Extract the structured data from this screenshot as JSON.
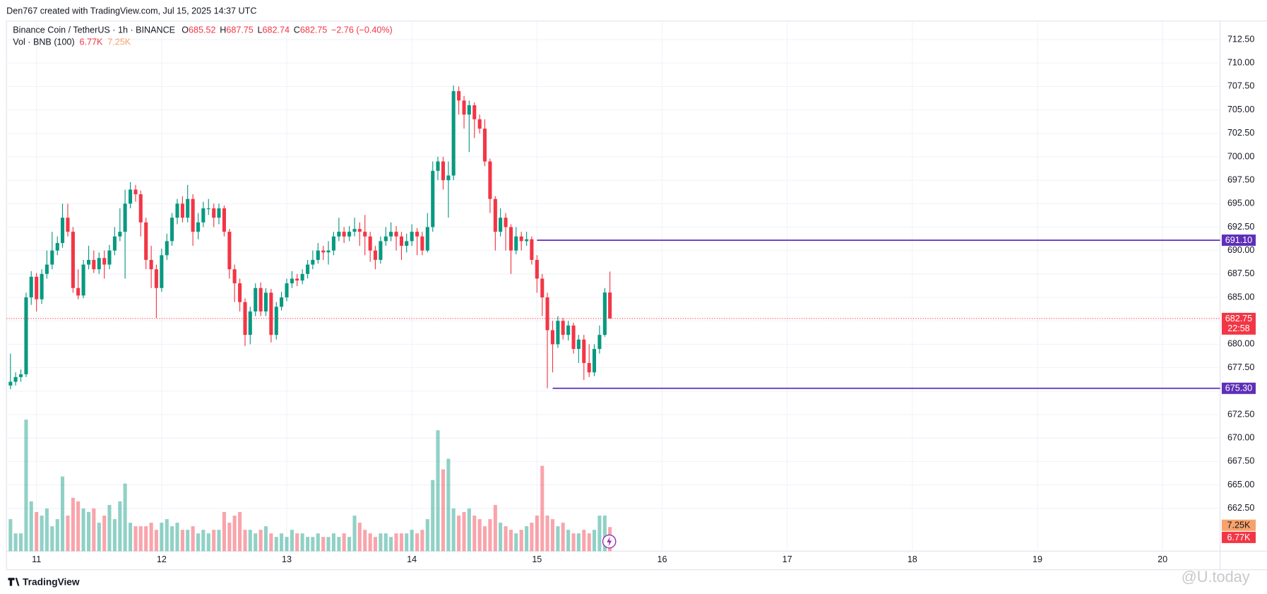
{
  "header": {
    "credit": "Den767 created with TradingView.com, Jul 15, 2025 14:37 UTC",
    "footer_brand": "TradingView",
    "watermark": "@U.today"
  },
  "legend": {
    "symbol": "Binance Coin / TetherUS · 1h · BINANCE",
    "ohlc": [
      {
        "label": "O",
        "value": 685.52
      },
      {
        "label": "H",
        "value": 687.75
      },
      {
        "label": "L",
        "value": 682.74
      },
      {
        "label": "C",
        "value": 682.75
      }
    ],
    "change": "−2.76 (−0.40%)",
    "volume_title": "Vol · BNB (100)",
    "volume_last": "6.77K",
    "volume_ma": "7.25K"
  },
  "chart_data": {
    "type": "candlestick",
    "x": [
      10.792,
      10.833,
      10.875,
      10.917,
      10.958,
      11,
      11.042,
      11.083,
      11.125,
      11.167,
      11.208,
      11.25,
      11.292,
      11.333,
      11.375,
      11.417,
      11.458,
      11.5,
      11.542,
      11.583,
      11.625,
      11.667,
      11.708,
      11.75,
      11.792,
      11.833,
      11.875,
      11.917,
      11.958,
      12,
      12.042,
      12.083,
      12.125,
      12.167,
      12.208,
      12.25,
      12.292,
      12.333,
      12.375,
      12.417,
      12.458,
      12.5,
      12.542,
      12.583,
      12.625,
      12.667,
      12.708,
      12.75,
      12.792,
      12.833,
      12.875,
      12.917,
      12.958,
      13,
      13.042,
      13.083,
      13.125,
      13.167,
      13.208,
      13.25,
      13.292,
      13.333,
      13.375,
      13.417,
      13.458,
      13.5,
      13.542,
      13.583,
      13.625,
      13.667,
      13.708,
      13.75,
      13.792,
      13.833,
      13.875,
      13.917,
      13.958,
      14,
      14.042,
      14.083,
      14.125,
      14.167,
      14.208,
      14.25,
      14.292,
      14.333,
      14.375,
      14.417,
      14.458,
      14.5,
      14.542,
      14.583,
      14.625,
      14.667,
      14.708,
      14.75,
      14.792,
      14.833,
      14.875,
      14.917,
      14.958,
      15,
      15.042,
      15.083,
      15.125,
      15.167,
      15.208,
      15.25,
      15.292,
      15.333,
      15.375,
      15.417,
      15.458,
      15.5,
      15.542,
      15.583
    ],
    "open": [
      675.6,
      676.0,
      676.5,
      676.8,
      685.0,
      687.2,
      684.8,
      687.5,
      688.5,
      690.0,
      690.8,
      693.5,
      692.0,
      686.0,
      685.2,
      688.5,
      689.0,
      688.0,
      689.2,
      688.5,
      690.0,
      691.5,
      692.0,
      695.0,
      696.5,
      696.0,
      693.0,
      689.0,
      688.0,
      686.0,
      689.5,
      691.0,
      693.5,
      695.0,
      693.5,
      695.5,
      692.0,
      693.0,
      694.5,
      694.5,
      693.5,
      694.5,
      692.0,
      688.0,
      686.5,
      684.5,
      681.0,
      683.5,
      686.0,
      683.5,
      685.5,
      681.0,
      684.0,
      685.0,
      686.5,
      687.0,
      686.8,
      687.5,
      688.5,
      689.0,
      690.0,
      689.8,
      690.0,
      691.5,
      692.0,
      691.5,
      692.0,
      692.3,
      692.0,
      691.5,
      690.0,
      689.0,
      691.0,
      691.5,
      692.0,
      691.5,
      690.5,
      691.0,
      692.0,
      691.5,
      690.0,
      692.5,
      698.5,
      699.5,
      697.5,
      698.0,
      707.0,
      706.0,
      704.5,
      705.5,
      704.0,
      703.0,
      699.5,
      695.5,
      692.0,
      693.5,
      692.5,
      690.0,
      691.5,
      691.0,
      691.2,
      689.0,
      687.0,
      685.0,
      681.5,
      680.0,
      682.5,
      681.0,
      682.0,
      679.5,
      680.5,
      678.0,
      677.0,
      679.5,
      681.0,
      685.52
    ],
    "high": [
      679.0,
      677.0,
      677.3,
      685.5,
      687.8,
      687.6,
      688.0,
      690.0,
      692.0,
      691.5,
      695.0,
      695.0,
      692.5,
      688.0,
      689.0,
      690.5,
      690.0,
      689.8,
      690.0,
      690.6,
      692.5,
      694.5,
      696.5,
      697.3,
      697.0,
      696.4,
      693.5,
      690.5,
      688.5,
      690.2,
      691.8,
      694.0,
      695.5,
      695.8,
      697.0,
      696.0,
      694.0,
      695.2,
      695.5,
      695.0,
      695.0,
      694.8,
      692.3,
      688.5,
      687.0,
      684.9,
      684.0,
      686.5,
      686.6,
      686.0,
      685.9,
      684.5,
      685.6,
      687.0,
      687.8,
      687.5,
      688.0,
      689.0,
      690.0,
      690.8,
      690.5,
      691.0,
      692.0,
      693.5,
      692.5,
      692.6,
      693.5,
      693.0,
      693.8,
      692.0,
      690.5,
      691.5,
      692.5,
      693.0,
      692.6,
      692.0,
      691.8,
      692.8,
      692.4,
      692.0,
      694.0,
      699.5,
      700.0,
      700.0,
      699.5,
      707.6,
      707.5,
      706.5,
      706.0,
      705.8,
      704.5,
      704.0,
      699.8,
      695.8,
      694.5,
      694.0,
      692.8,
      692.5,
      692.0,
      692.0,
      691.5,
      689.5,
      687.5,
      685.5,
      682.5,
      683.0,
      682.8,
      682.5,
      682.3,
      681.0,
      681.0,
      680.0,
      680.0,
      682.0,
      686.0,
      687.75
    ],
    "low": [
      675.2,
      675.6,
      676.0,
      676.5,
      684.2,
      683.5,
      684.3,
      687.0,
      688.0,
      689.5,
      690.3,
      691.5,
      685.5,
      684.8,
      684.9,
      688.0,
      687.6,
      687.5,
      687.0,
      688.0,
      689.5,
      691.0,
      687.0,
      694.5,
      695.2,
      691.5,
      688.0,
      686.0,
      682.8,
      685.6,
      689.0,
      690.5,
      692.8,
      693.0,
      693.0,
      690.5,
      691.2,
      692.5,
      693.8,
      692.5,
      692.8,
      691.5,
      687.0,
      684.5,
      683.5,
      679.8,
      680.0,
      683.0,
      683.0,
      683.0,
      680.2,
      680.5,
      683.6,
      684.6,
      686.0,
      686.2,
      686.4,
      687.0,
      688.0,
      688.6,
      689.0,
      688.5,
      689.5,
      691.0,
      690.8,
      691.0,
      691.5,
      690.5,
      689.5,
      688.8,
      688.0,
      688.6,
      690.5,
      691.0,
      690.0,
      689.0,
      689.8,
      690.5,
      689.5,
      689.5,
      689.8,
      692.0,
      697.5,
      696.5,
      693.5,
      697.5,
      704.5,
      703.0,
      700.5,
      702.0,
      702.5,
      699.0,
      694.0,
      690.0,
      691.5,
      690.0,
      687.5,
      689.6,
      690.0,
      690.5,
      688.5,
      685.5,
      683.0,
      675.3,
      677.0,
      679.6,
      680.5,
      680.4,
      679.0,
      678.0,
      676.2,
      676.5,
      676.6,
      679.0,
      680.8,
      682.74
    ],
    "close": [
      676.0,
      676.5,
      676.8,
      685.0,
      687.2,
      684.8,
      687.5,
      688.5,
      690.0,
      690.8,
      693.5,
      692.0,
      686.0,
      685.2,
      688.5,
      689.0,
      688.0,
      689.2,
      688.5,
      690.0,
      691.5,
      692.0,
      695.0,
      696.5,
      696.0,
      693.0,
      689.0,
      688.0,
      686.0,
      689.5,
      691.0,
      693.5,
      695.0,
      693.5,
      695.5,
      692.0,
      693.0,
      694.5,
      694.5,
      693.5,
      694.5,
      692.0,
      688.0,
      686.5,
      684.5,
      681.0,
      683.5,
      686.0,
      683.5,
      685.5,
      681.0,
      684.0,
      685.0,
      686.5,
      687.0,
      686.8,
      687.5,
      688.5,
      689.0,
      690.0,
      689.8,
      690.0,
      691.5,
      692.0,
      691.5,
      692.0,
      692.3,
      692.0,
      691.5,
      690.0,
      689.0,
      691.0,
      691.5,
      692.0,
      691.5,
      690.5,
      691.0,
      692.0,
      691.5,
      690.0,
      692.5,
      698.5,
      699.5,
      697.5,
      698.0,
      707.0,
      706.0,
      704.5,
      705.5,
      704.0,
      703.0,
      699.5,
      695.5,
      692.0,
      693.5,
      692.5,
      690.0,
      691.5,
      691.0,
      691.2,
      689.0,
      687.0,
      685.0,
      681.5,
      680.0,
      682.5,
      681.0,
      682.0,
      679.5,
      680.5,
      678.0,
      677.0,
      679.5,
      681.0,
      685.52,
      682.75
    ],
    "volume": [
      9,
      5,
      5,
      37,
      14,
      11,
      10,
      12,
      7,
      9,
      21,
      10,
      15,
      14,
      12,
      11,
      12,
      8,
      10,
      13,
      9,
      14,
      19,
      8,
      7,
      7,
      7,
      8,
      6,
      8,
      9,
      7,
      8,
      6,
      6,
      7,
      5,
      6,
      5,
      6,
      6,
      11,
      8,
      10,
      11,
      6,
      6,
      5,
      6,
      7,
      5,
      4,
      5,
      4,
      6,
      5,
      5,
      4,
      4,
      5,
      4,
      4,
      5,
      4,
      5,
      4,
      10,
      8,
      6,
      5,
      4,
      5,
      5,
      4,
      5,
      5,
      5,
      6,
      5,
      6,
      9,
      20,
      34,
      23,
      26,
      12,
      10,
      11,
      12,
      10,
      9,
      7,
      9,
      13,
      8,
      7,
      6,
      5,
      6,
      7,
      8,
      10,
      24,
      10,
      9,
      7,
      8,
      6,
      5,
      5,
      6,
      5,
      6,
      10,
      10,
      6.77
    ],
    "up_color": "#089981",
    "down_color": "#f23645",
    "xlim": [
      10.76,
      20.46
    ],
    "xticks": [
      11,
      12,
      13,
      14,
      15,
      16,
      17,
      18,
      19,
      20
    ],
    "ylim": [
      657.93,
      714.48
    ],
    "yticks": [
      {
        "value": 662.5,
        "label": "662.50"
      },
      {
        "value": 665,
        "label": "665.00"
      },
      {
        "value": 667.5,
        "label": "667.50"
      },
      {
        "value": 670,
        "label": "670.00"
      },
      {
        "value": 672.5,
        "label": "672.50"
      },
      {
        "value": 675,
        "label": "675.00"
      },
      {
        "value": 677.5,
        "label": "677.50"
      },
      {
        "value": 680,
        "label": "680.00"
      },
      {
        "value": 682.5,
        "label": "682.50"
      },
      {
        "value": 685,
        "label": "685.00"
      },
      {
        "value": 687.5,
        "label": "687.50"
      },
      {
        "value": 690,
        "label": "690.00"
      },
      {
        "value": 692.5,
        "label": "692.50"
      },
      {
        "value": 695,
        "label": "695.00"
      },
      {
        "value": 697.5,
        "label": "697.50"
      },
      {
        "value": 700,
        "label": "700.00"
      },
      {
        "value": 702.5,
        "label": "702.50"
      },
      {
        "value": 705,
        "label": "705.00"
      },
      {
        "value": 707.5,
        "label": "707.50"
      },
      {
        "value": 710,
        "label": "710.00"
      },
      {
        "value": 712.5,
        "label": "712.50"
      }
    ],
    "levels": [
      {
        "value": 691.1,
        "label": "691.10",
        "from": 15,
        "color": "#5e2fb8"
      },
      {
        "value": 675.3,
        "label": "675.30",
        "from": 15.125,
        "color": "#5e2fb8"
      }
    ],
    "last_price": {
      "value": 682.75,
      "label": "682.75",
      "countdown": "22:58"
    },
    "grid": true
  }
}
